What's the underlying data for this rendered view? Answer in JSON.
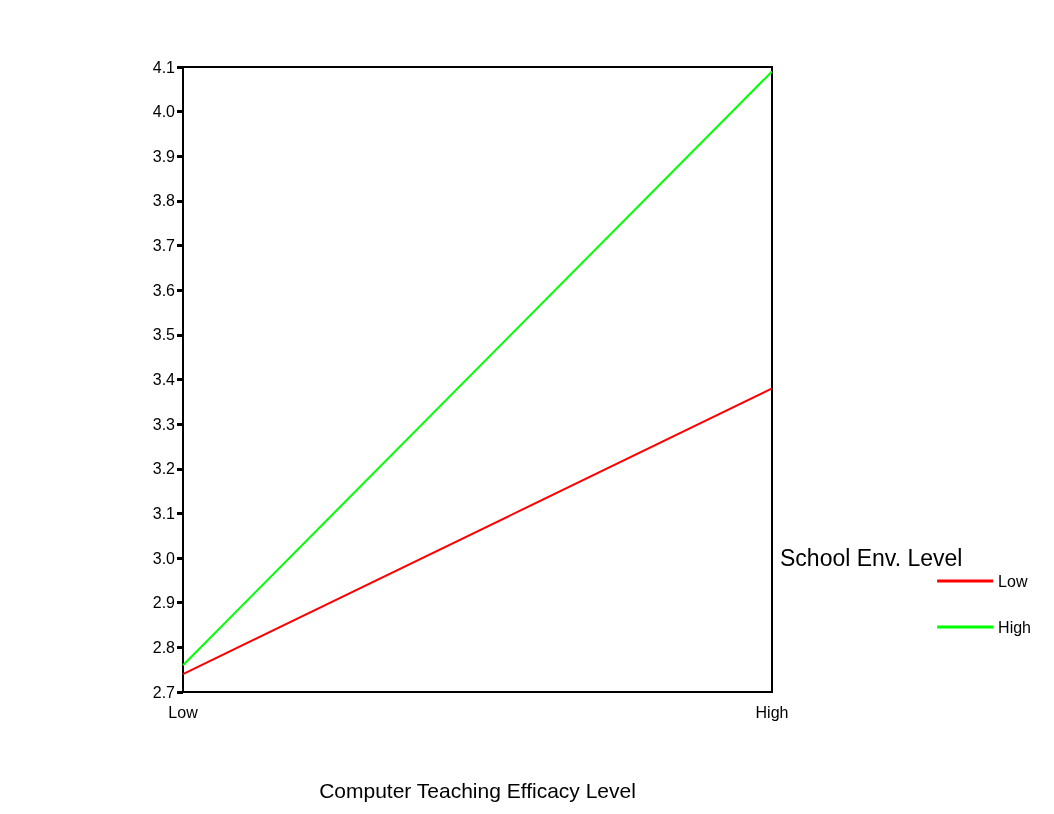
{
  "chart_data": {
    "type": "line",
    "xlabel": "Computer Teaching Efficacy Level",
    "legend_title": "School Env. Level",
    "categories": [
      "Low",
      "High"
    ],
    "series": [
      {
        "name": "Low",
        "color": "#ff0000",
        "values": [
          2.74,
          3.38
        ]
      },
      {
        "name": "High",
        "color": "#00ff00",
        "values": [
          2.76,
          4.09
        ]
      }
    ],
    "ylim": [
      2.7,
      4.1
    ],
    "yticks": [
      2.7,
      2.8,
      2.9,
      {
        "value": 3,
        "label": "3.0"
      },
      3.1,
      3.2,
      3.3,
      3.4,
      3.5,
      3.6,
      3.7,
      3.8,
      3.9,
      {
        "value": 4,
        "label": "4.0"
      },
      4.1
    ],
    "grid": false,
    "legend": "right",
    "marker": "none",
    "line_style": "solid"
  }
}
